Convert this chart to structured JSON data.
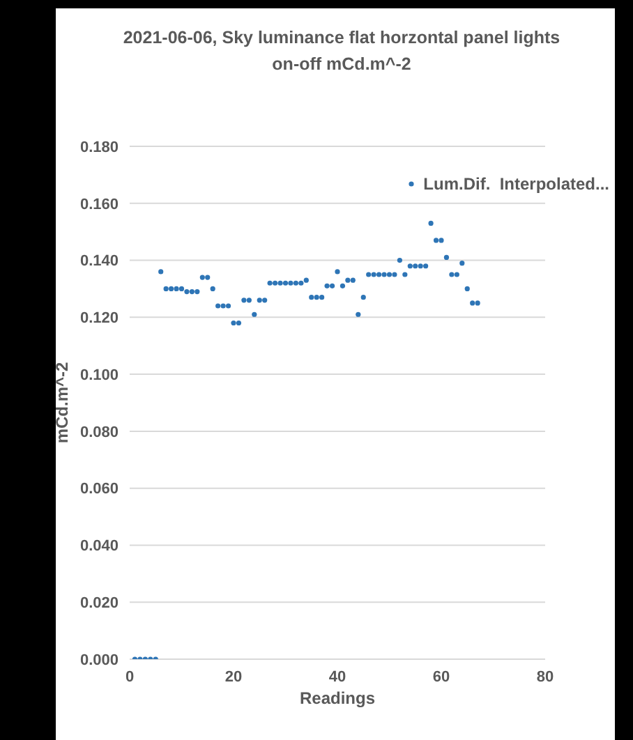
{
  "chart_data": {
    "type": "scatter",
    "title": "2021-06-06, Sky luminance flat horzontal panel lights on-off mCd.m^-2",
    "xlabel": "Readings",
    "ylabel": "mCd.m^-2",
    "x": [
      1,
      2,
      3,
      4,
      5,
      6,
      7,
      8,
      9,
      10,
      11,
      12,
      13,
      14,
      15,
      16,
      17,
      18,
      19,
      20,
      21,
      22,
      23,
      24,
      25,
      26,
      27,
      28,
      29,
      30,
      31,
      32,
      33,
      34,
      35,
      36,
      37,
      38,
      39,
      40,
      41,
      42,
      43,
      44,
      45,
      46,
      47,
      48,
      49,
      50,
      51,
      52,
      53,
      54,
      55,
      56,
      57,
      58,
      59,
      60,
      61,
      62,
      63,
      64,
      65,
      66,
      67
    ],
    "series": [
      {
        "name": "Lum.Dif.  Interpolated...",
        "color": "#2e75b6",
        "values": [
          0,
          0,
          0,
          0,
          0,
          0.136,
          0.13,
          0.13,
          0.13,
          0.13,
          0.129,
          0.129,
          0.129,
          0.134,
          0.134,
          0.13,
          0.124,
          0.124,
          0.124,
          0.118,
          0.118,
          0.126,
          0.126,
          0.121,
          0.126,
          0.126,
          0.132,
          0.132,
          0.132,
          0.132,
          0.132,
          0.132,
          0.132,
          0.133,
          0.127,
          0.127,
          0.127,
          0.131,
          0.131,
          0.136,
          0.131,
          0.133,
          0.133,
          0.121,
          0.127,
          0.135,
          0.135,
          0.135,
          0.135,
          0.135,
          0.135,
          0.14,
          0.135,
          0.138,
          0.138,
          0.138,
          0.138,
          0.153,
          0.147,
          0.147,
          0.141,
          0.135,
          0.135,
          0.139,
          0.13,
          0.125,
          0.125
        ]
      }
    ],
    "xlim": [
      0,
      80
    ],
    "xticks": [
      {
        "value": 0,
        "label": "0"
      },
      {
        "value": 20,
        "label": "20"
      },
      {
        "value": 40,
        "label": "40"
      },
      {
        "value": 60,
        "label": "60"
      },
      {
        "value": 80,
        "label": "80"
      }
    ],
    "ylim": [
      0,
      0.18
    ],
    "yticks": [
      {
        "value": 0,
        "label": "0.000"
      },
      {
        "value": 0.02,
        "label": "0.020"
      },
      {
        "value": 0.04,
        "label": "0.040"
      },
      {
        "value": 0.06,
        "label": "0.060"
      },
      {
        "value": 0.08,
        "label": "0.080"
      },
      {
        "value": 0.1,
        "label": "0.100"
      },
      {
        "value": 0.12,
        "label": "0.120"
      },
      {
        "value": 0.14,
        "label": "0.140"
      },
      {
        "value": 0.16,
        "label": "0.160"
      },
      {
        "value": 0.18,
        "label": "0.180"
      }
    ],
    "grid": "y",
    "legend": "top right",
    "marker": "circle"
  }
}
